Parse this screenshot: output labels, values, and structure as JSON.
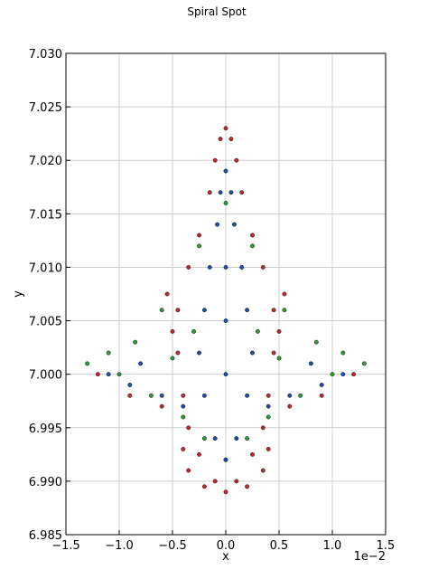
{
  "chart_data": {
    "type": "scatter",
    "title": "Spiral Spot",
    "x_label": "x",
    "y_label": "y",
    "x_offset_label": "1e−2",
    "grid": true,
    "xlim": [
      -1.5,
      1.5
    ],
    "xticks": [
      {
        "value": -1.5,
        "label": "−1.5"
      },
      {
        "value": -1.0,
        "label": "−1.0"
      },
      {
        "value": -0.5,
        "label": "−0.5"
      },
      {
        "value": 0,
        "label": "0.0"
      },
      0.5,
      {
        "value": 1.0,
        "label": "1.0"
      },
      1.5
    ],
    "ylim": [
      6.985,
      7.03
    ],
    "yticks": [
      6.985,
      {
        "value": 6.99,
        "label": "6.990"
      },
      6.995,
      {
        "value": 7.0,
        "label": "7.000"
      },
      7.005,
      {
        "value": 7.01,
        "label": "7.010"
      },
      7.015,
      {
        "value": 7.02,
        "label": "7.020"
      },
      7.025,
      {
        "value": 7.03,
        "label": "7.030"
      }
    ],
    "series": [
      {
        "color": "#c0282d",
        "x": [
          0,
          -0.2,
          0.2,
          -0.35,
          0.35,
          -0.4,
          0.4,
          -0.35,
          0.35,
          -0.4,
          0.4,
          -0.45,
          0.45,
          -0.45,
          0.45,
          -0.35,
          0.35,
          -0.25,
          0.25,
          -0.15,
          0.15,
          -0.1,
          0.1,
          0,
          -0.05,
          0.05,
          -0.6,
          0.6,
          -0.9,
          0.9,
          -1.2,
          1.2,
          -0.5,
          0.5,
          -0.55,
          0.55,
          -0.1,
          0.1,
          -0.25,
          0.25
        ],
        "values": [
          6.989,
          6.9895,
          6.9895,
          6.991,
          6.991,
          6.993,
          6.993,
          6.995,
          6.995,
          6.998,
          6.998,
          7.002,
          7.002,
          7.006,
          7.006,
          7.01,
          7.01,
          7.013,
          7.013,
          7.017,
          7.017,
          7.02,
          7.02,
          7.023,
          7.022,
          7.022,
          6.997,
          6.997,
          6.998,
          6.998,
          7.0,
          7.0,
          7.004,
          7.004,
          7.0075,
          7.0075,
          6.99,
          6.99,
          6.9925,
          6.9925
        ]
      },
      {
        "color": "#2e9b3a",
        "x": [
          -1.3,
          1.3,
          -1.1,
          1.1,
          -0.85,
          0.85,
          -0.6,
          0.55,
          -0.7,
          0.7,
          -0.4,
          0.4,
          -0.2,
          0.2,
          0,
          -0.25,
          0.25,
          0,
          -1.0,
          1.0,
          -0.5,
          0.5,
          -0.3,
          0.3
        ],
        "values": [
          7.001,
          7.001,
          7.002,
          7.002,
          7.003,
          7.003,
          7.006,
          7.006,
          6.998,
          6.998,
          6.996,
          6.996,
          6.994,
          6.994,
          6.992,
          7.012,
          7.012,
          7.016,
          7.0,
          7.0,
          7.0015,
          7.0015,
          7.004,
          7.004
        ]
      },
      {
        "color": "#1f4fa8",
        "x": [
          0,
          -0.1,
          0.1,
          -0.2,
          0.2,
          -0.25,
          0.25,
          -0.2,
          0.2,
          -0.15,
          0.15,
          -0.08,
          0.08,
          0,
          -0.05,
          0.05,
          -0.6,
          0.6,
          -0.9,
          0.9,
          -1.1,
          1.1,
          -0.8,
          0.8,
          0,
          0,
          0,
          -0.4,
          0.4
        ],
        "values": [
          6.992,
          6.994,
          6.994,
          6.998,
          6.998,
          7.002,
          7.002,
          7.006,
          7.006,
          7.01,
          7.01,
          7.014,
          7.014,
          7.019,
          7.017,
          7.017,
          6.998,
          6.998,
          6.999,
          6.999,
          7.0,
          7.0,
          7.001,
          7.001,
          7.0,
          7.005,
          7.01,
          6.997,
          6.997
        ]
      }
    ]
  }
}
